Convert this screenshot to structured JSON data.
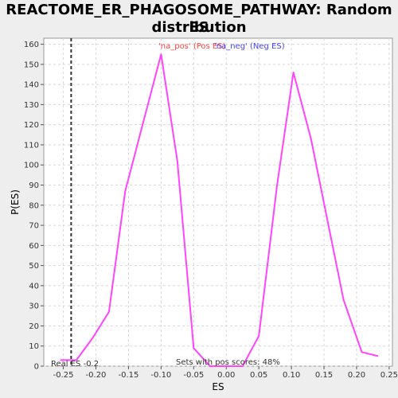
{
  "chart_data": {
    "type": "line",
    "title_lines": [
      "REACTOME_ER_PHAGOSOME_PATHWAY: Random ES",
      "distribution"
    ],
    "xlabel": "ES",
    "ylabel": "P(ES)",
    "xlim": [
      -0.28,
      0.255
    ],
    "ylim": [
      0,
      163
    ],
    "x_ticks": [
      -0.25,
      -0.2,
      -0.15,
      -0.1,
      -0.05,
      0.0,
      0.05,
      0.1,
      0.15,
      0.2,
      0.25
    ],
    "x_tick_labels": [
      "-0.25",
      "-0.20",
      "-0.15",
      "-0.10",
      "-0.05",
      "0.00",
      "0.05",
      "0.10",
      "0.15",
      "0.20",
      "0.25"
    ],
    "y_ticks": [
      0,
      10,
      20,
      30,
      40,
      50,
      60,
      70,
      80,
      90,
      100,
      110,
      120,
      130,
      140,
      150,
      160
    ],
    "y_tick_labels": [
      "0",
      "10",
      "20",
      "30",
      "40",
      "50",
      "60",
      "70",
      "80",
      "90",
      "100",
      "110",
      "120",
      "130",
      "140",
      "150",
      "160"
    ],
    "grid": true,
    "series": [
      {
        "color": "#ff44ff",
        "x": [
          -0.255,
          -0.23,
          -0.205,
          -0.18,
          -0.155,
          -0.13,
          -0.1,
          -0.075,
          -0.05,
          -0.025,
          0.0,
          0.025,
          0.05,
          0.078,
          0.103,
          0.13,
          0.155,
          0.18,
          0.208,
          0.233
        ],
        "y": [
          3,
          3,
          14,
          27,
          87,
          118,
          155,
          102,
          9,
          0,
          0,
          0,
          15,
          90,
          146,
          113,
          73,
          33,
          7,
          5
        ]
      }
    ],
    "real_es": -0.238,
    "legend": [
      {
        "text": "'na_pos' (Pos ES)",
        "color": "#ff4444"
      },
      {
        "text": "'na_neg' (Neg ES)",
        "color": "#4444ff"
      }
    ],
    "annotations": {
      "real_es_label": "Real ES -0.2",
      "sets_label": "Sets with pos scores: 48%"
    }
  }
}
